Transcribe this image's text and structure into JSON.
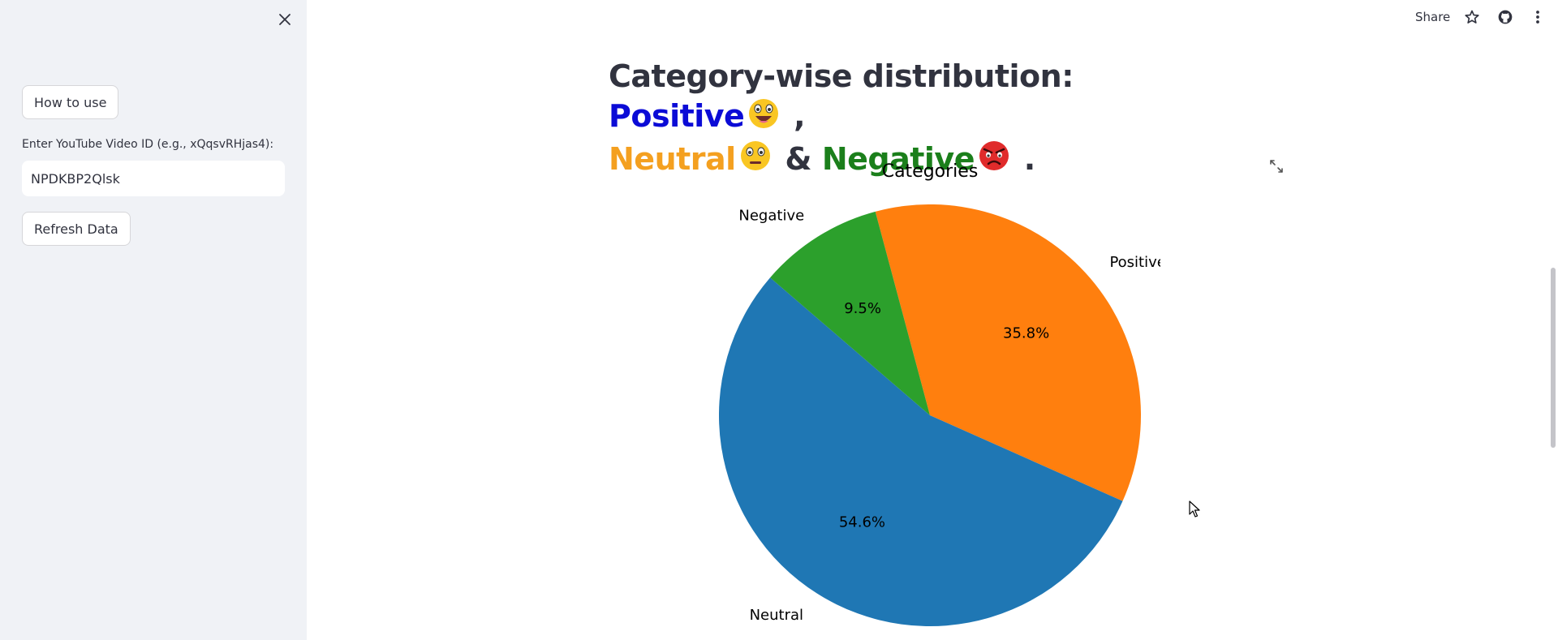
{
  "sidebar": {
    "how_to_use": "How to use",
    "input_label": "Enter YouTube Video ID (e.g., xQqsvRHjas4):",
    "input_value": "NPDKBP2Qlsk",
    "refresh": "Refresh Data"
  },
  "toolbar": {
    "share": "Share",
    "icons": [
      "star-icon",
      "github-icon",
      "more-vert-icon"
    ]
  },
  "heading": {
    "prefix": "Category-wise distribution: ",
    "positive": "Positive",
    "comma": " ,",
    "neutral": "Neutral",
    "amp": " & ",
    "negative": "Negative",
    "period": " .",
    "colors": {
      "positive": "#0b0bd6",
      "neutral": "#f4a020",
      "negative": "#1b7f1b"
    }
  },
  "chart_data": {
    "type": "pie",
    "title": "Categories",
    "labels": [
      "Positive",
      "Neutral",
      "Negative"
    ],
    "values": [
      35.8,
      54.6,
      9.5
    ],
    "value_labels": [
      "35.8%",
      "54.6%",
      "9.5%"
    ],
    "colors": [
      "#ff7f0e",
      "#1f77b4",
      "#2ca02c"
    ]
  }
}
